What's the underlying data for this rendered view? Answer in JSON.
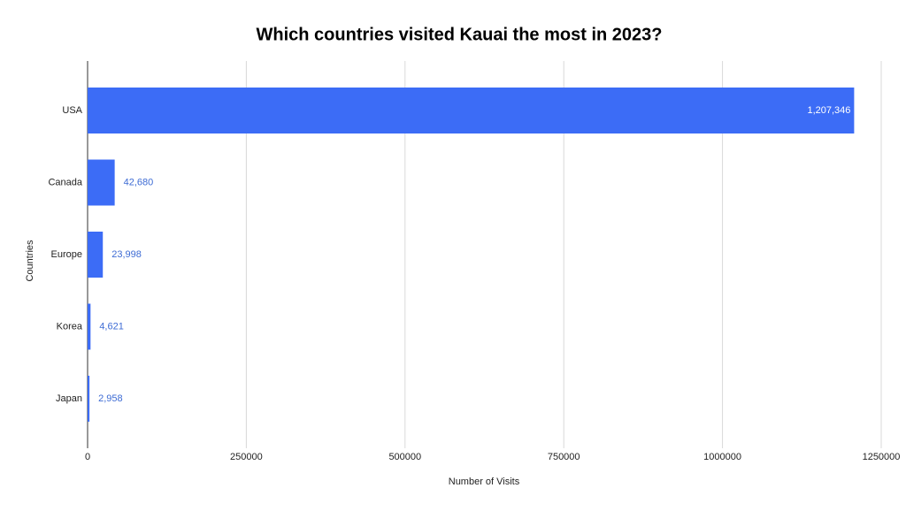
{
  "chart_data": {
    "type": "bar",
    "orientation": "horizontal",
    "title": "Which countries visited Kauai the most in 2023?",
    "x_label": "Number of Visits",
    "y_label": "Countries",
    "categories": [
      "USA",
      "Canada",
      "Europe",
      "Korea",
      "Japan"
    ],
    "values": [
      1207346,
      42680,
      23998,
      4621,
      2958
    ],
    "value_labels": [
      "1,207,346",
      "42,680",
      "23,998",
      "4,621",
      "2,958"
    ],
    "color": "#3c6cf6",
    "label_color": "#3d6bd4",
    "xlim": [
      0,
      1250000
    ],
    "xticks": [
      0,
      250000,
      500000,
      750000,
      1000000,
      1250000
    ],
    "grid": true
  }
}
